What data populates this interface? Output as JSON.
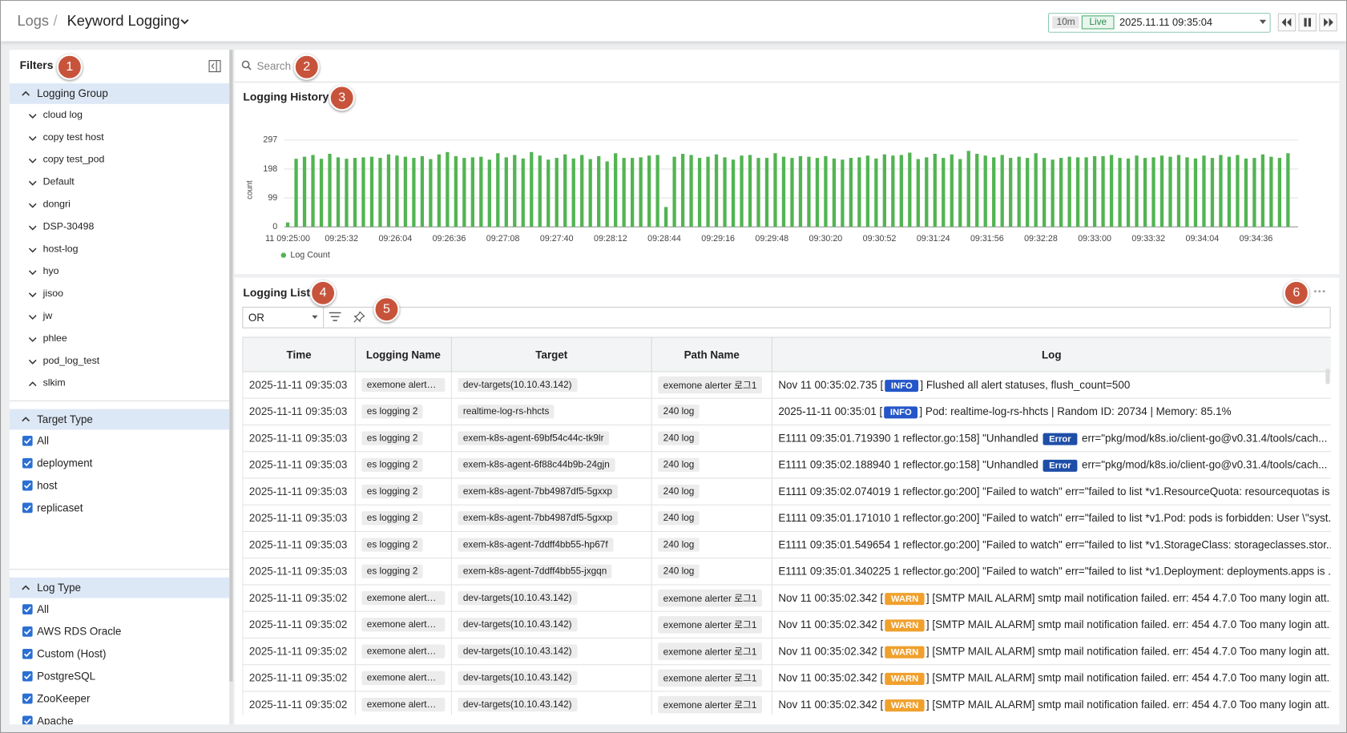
{
  "header": {
    "breadcrumb": "Logs",
    "separator": "/",
    "title": "Keyword Logging",
    "range": "10m",
    "mode": "Live",
    "time": "2025.11.11 09:35:04"
  },
  "callouts": [
    "1",
    "2",
    "3",
    "4",
    "5",
    "6"
  ],
  "filters": {
    "title": "Filters",
    "groups": [
      {
        "title": "Logging Group",
        "items": [
          "cloud log",
          "copy test host",
          "copy test_pod",
          "Default",
          "dongri",
          "DSP-30498",
          "host-log",
          "hyo",
          "jisoo",
          "jw",
          "phlee",
          "pod_log_test",
          "slkim"
        ]
      },
      {
        "title": "Target Type",
        "items": [
          "All",
          "deployment",
          "host",
          "replicaset"
        ]
      },
      {
        "title": "Log Type",
        "items": [
          "All",
          "AWS RDS Oracle",
          "Custom (Host)",
          "PostgreSQL",
          "ZooKeeper",
          "Apache"
        ]
      }
    ]
  },
  "search": {
    "placeholder": "Search"
  },
  "chart_data": {
    "type": "bar",
    "title": "Logging History",
    "ylabel": "count",
    "grid": true,
    "x": [
      "09:25:00",
      "09:25:05",
      "09:25:10",
      "09:25:15",
      "09:25:20",
      "09:25:25",
      "09:25:30",
      "09:25:35",
      "09:25:40",
      "09:25:45",
      "09:25:50",
      "09:25:55",
      "09:26:00",
      "09:26:05",
      "09:26:10",
      "09:26:15",
      "09:26:20",
      "09:26:25",
      "09:26:30",
      "09:26:35",
      "09:26:40",
      "09:26:45",
      "09:26:50",
      "09:26:55",
      "09:27:00",
      "09:27:05",
      "09:27:10",
      "09:27:15",
      "09:27:20",
      "09:27:25",
      "09:27:30",
      "09:27:35",
      "09:27:40",
      "09:27:45",
      "09:27:50",
      "09:27:55",
      "09:28:00",
      "09:28:05",
      "09:28:10",
      "09:28:15",
      "09:28:20",
      "09:28:25",
      "09:28:30",
      "09:28:35",
      "09:28:40",
      "09:28:45",
      "09:28:50",
      "09:28:55",
      "09:29:00",
      "09:29:05",
      "09:29:10",
      "09:29:15",
      "09:29:20",
      "09:29:25",
      "09:29:30",
      "09:29:35",
      "09:29:40",
      "09:29:45",
      "09:29:50",
      "09:29:55",
      "09:30:00",
      "09:30:05",
      "09:30:10",
      "09:30:15",
      "09:30:20",
      "09:30:25",
      "09:30:30",
      "09:30:35",
      "09:30:40",
      "09:30:45",
      "09:30:50",
      "09:30:55",
      "09:31:00",
      "09:31:05",
      "09:31:10",
      "09:31:15",
      "09:31:20",
      "09:31:25",
      "09:31:30",
      "09:31:35",
      "09:31:40",
      "09:31:45",
      "09:31:50",
      "09:31:55",
      "09:32:00",
      "09:32:05",
      "09:32:10",
      "09:32:15",
      "09:32:20",
      "09:32:25",
      "09:32:30",
      "09:32:35",
      "09:32:40",
      "09:32:45",
      "09:32:50",
      "09:32:55",
      "09:33:00",
      "09:33:05",
      "09:33:10",
      "09:33:15",
      "09:33:20",
      "09:33:25",
      "09:33:30",
      "09:33:35",
      "09:33:40",
      "09:33:45",
      "09:33:50",
      "09:33:55",
      "09:34:00",
      "09:34:05",
      "09:34:10",
      "09:34:15",
      "09:34:20",
      "09:34:25",
      "09:34:30",
      "09:34:35",
      "09:34:40",
      "09:34:45",
      "09:34:50",
      "09:34:55"
    ],
    "series": [
      {
        "name": "Log Count",
        "color": "#52b452",
        "values": [
          15,
          233,
          240,
          246,
          233,
          250,
          238,
          233,
          236,
          238,
          240,
          236,
          248,
          244,
          240,
          236,
          242,
          232,
          248,
          256,
          242,
          236,
          238,
          240,
          230,
          252,
          238,
          246,
          234,
          256,
          244,
          230,
          236,
          248,
          234,
          246,
          232,
          242,
          224,
          252,
          236,
          236,
          238,
          244,
          246,
          68,
          240,
          250,
          246,
          236,
          240,
          248,
          238,
          230,
          244,
          246,
          236,
          236,
          252,
          240,
          236,
          242,
          240,
          236,
          242,
          234,
          230,
          236,
          238,
          244,
          234,
          248,
          244,
          246,
          254,
          232,
          238,
          250,
          236,
          248,
          232,
          260,
          250,
          244,
          238,
          246,
          236,
          240,
          236,
          252,
          236,
          230,
          236,
          240,
          238,
          238,
          242,
          242,
          246,
          236,
          234,
          244,
          236,
          238,
          244,
          240,
          246,
          238,
          234,
          244,
          236,
          246,
          240,
          246,
          234,
          236,
          248,
          240,
          236,
          252
        ]
      }
    ],
    "xlim": [
      "09:24:58",
      "09:35:01"
    ],
    "xticks": [
      "11 09:25:00",
      "09:25:32",
      "09:26:04",
      "09:26:36",
      "09:27:08",
      "09:27:40",
      "09:28:12",
      "09:28:44",
      "09:29:16",
      "09:29:48",
      "09:30:20",
      "09:30:52",
      "09:31:24",
      "09:31:56",
      "09:32:28",
      "09:33:00",
      "09:33:32",
      "09:34:04",
      "09:34:36"
    ],
    "ylim": [
      0,
      297
    ],
    "yticks": [
      0,
      99,
      198,
      297
    ]
  },
  "logging_list": {
    "title": "Logging List",
    "operator": "OR",
    "columns": [
      "Time",
      "Logging Name",
      "Target",
      "Path Name",
      "Log"
    ],
    "rows": [
      [
        "2025-11-11 09:35:03",
        "exemone alerter ...",
        "dev-targets(10.10.43.142)",
        "exemone alerter 로그1",
        {
          "pre": "Nov 11 00:35:02.735 [",
          "badge": "INFO",
          "badge_color": "#2456c8",
          "post": "] Flushed all alert statuses, flush_count=500"
        }
      ],
      [
        "2025-11-11 09:35:03",
        "es logging 2",
        "realtime-log-rs-hhcts",
        "240 log",
        {
          "pre": "2025-11-11 00:35:01 [",
          "badge": "INFO",
          "badge_color": "#2456c8",
          "post": "] Pod: realtime-log-rs-hhcts | Random ID: 20734 | Memory: 85.1%"
        }
      ],
      [
        "2025-11-11 09:35:03",
        "es logging 2",
        "exem-k8s-agent-69bf54c44c-tk9lr",
        "240 log",
        {
          "pre": "E1111 09:35:01.719390 1 reflector.go:158] \"Unhandled ",
          "badge": "Error",
          "badge_color": "#1f4ea8",
          "post": " err=\"pkg/mod/k8s.io/client-go@v0.31.4/tools/cach..."
        }
      ],
      [
        "2025-11-11 09:35:03",
        "es logging 2",
        "exem-k8s-agent-6f88c44b9b-24gjn",
        "240 log",
        {
          "pre": "E1111 09:35:02.188940 1 reflector.go:158] \"Unhandled ",
          "badge": "Error",
          "badge_color": "#1f4ea8",
          "post": " err=\"pkg/mod/k8s.io/client-go@v0.31.4/tools/cach..."
        }
      ],
      [
        "2025-11-11 09:35:03",
        "es logging 2",
        "exem-k8s-agent-7bb4987df5-5gxxp",
        "240 log",
        {
          "pre": "E1111 09:35:02.074019 1 reflector.go:200] \"Failed to watch\" err=\"failed to list *v1.ResourceQuota: resourcequotas is..."
        }
      ],
      [
        "2025-11-11 09:35:03",
        "es logging 2",
        "exem-k8s-agent-7bb4987df5-5gxxp",
        "240 log",
        {
          "pre": "E1111 09:35:01.171010 1 reflector.go:200] \"Failed to watch\" err=\"failed to list *v1.Pod: pods is forbidden: User \\\"syst..."
        }
      ],
      [
        "2025-11-11 09:35:03",
        "es logging 2",
        "exem-k8s-agent-7ddff4bb55-hp67f",
        "240 log",
        {
          "pre": "E1111 09:35:01.549654 1 reflector.go:200] \"Failed to watch\" err=\"failed to list *v1.StorageClass: storageclasses.stor..."
        }
      ],
      [
        "2025-11-11 09:35:03",
        "es logging 2",
        "exem-k8s-agent-7ddff4bb55-jxgqn",
        "240 log",
        {
          "pre": "E1111 09:35:01.340225 1 reflector.go:200] \"Failed to watch\" err=\"failed to list *v1.Deployment: deployments.apps is ..."
        }
      ],
      [
        "2025-11-11 09:35:02",
        "exemone alerter ...",
        "dev-targets(10.10.43.142)",
        "exemone alerter 로그1",
        {
          "pre": "Nov 11 00:35:02.342 [",
          "badge": "WARN",
          "badge_color": "#f0a02c",
          "post": "] [SMTP MAIL ALARM] smtp mail notification failed. err: 454 4.7.0 Too many login att..."
        }
      ],
      [
        "2025-11-11 09:35:02",
        "exemone alerter ...",
        "dev-targets(10.10.43.142)",
        "exemone alerter 로그1",
        {
          "pre": "Nov 11 00:35:02.342 [",
          "badge": "WARN",
          "badge_color": "#f0a02c",
          "post": "] [SMTP MAIL ALARM] smtp mail notification failed. err: 454 4.7.0 Too many login att..."
        }
      ],
      [
        "2025-11-11 09:35:02",
        "exemone alerter ...",
        "dev-targets(10.10.43.142)",
        "exemone alerter 로그1",
        {
          "pre": "Nov 11 00:35:02.342 [",
          "badge": "WARN",
          "badge_color": "#f0a02c",
          "post": "] [SMTP MAIL ALARM] smtp mail notification failed. err: 454 4.7.0 Too many login att..."
        }
      ],
      [
        "2025-11-11 09:35:02",
        "exemone alerter ...",
        "dev-targets(10.10.43.142)",
        "exemone alerter 로그1",
        {
          "pre": "Nov 11 00:35:02.342 [",
          "badge": "WARN",
          "badge_color": "#f0a02c",
          "post": "] [SMTP MAIL ALARM] smtp mail notification failed. err: 454 4.7.0 Too many login att..."
        }
      ],
      [
        "2025-11-11 09:35:02",
        "exemone alerter ...",
        "dev-targets(10.10.43.142)",
        "exemone alerter 로그1",
        {
          "pre": "Nov 11 00:35:02.342 [",
          "badge": "WARN",
          "badge_color": "#f0a02c",
          "post": "] [SMTP MAIL ALARM] smtp mail notification failed. err: 454 4.7.0 Too many login att..."
        }
      ]
    ]
  }
}
